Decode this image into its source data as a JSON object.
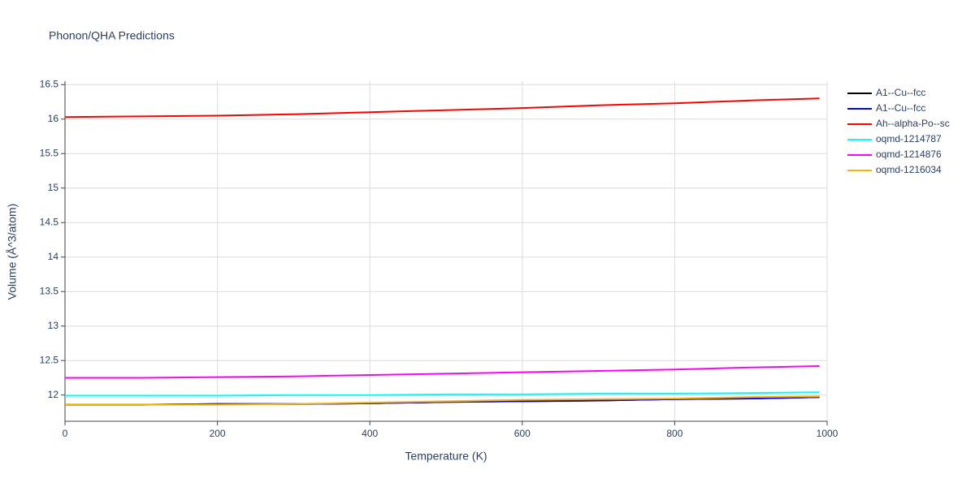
{
  "chart_data": {
    "type": "line",
    "title": "Phonon/QHA Predictions",
    "x_label": "Temperature (K)",
    "y_label": "Volume (Å^3/atom)",
    "x": [
      0,
      100,
      200,
      300,
      400,
      500,
      600,
      700,
      800,
      900,
      990
    ],
    "series": [
      {
        "name": "A1--Cu--fcc",
        "color": "#000000",
        "values": [
          11.86,
          11.86,
          11.87,
          11.87,
          11.88,
          11.9,
          11.91,
          11.92,
          11.94,
          11.95,
          11.97
        ]
      },
      {
        "name": "A1--Cu--fcc",
        "color": "#0000ff",
        "values": [
          11.86,
          11.86,
          11.87,
          11.87,
          11.88,
          11.9,
          11.91,
          11.92,
          11.94,
          11.95,
          11.97
        ]
      },
      {
        "name": "Ah--alpha-Po--sc",
        "color": "#ff0000",
        "values": [
          16.03,
          16.04,
          16.05,
          16.07,
          16.1,
          16.13,
          16.16,
          16.2,
          16.23,
          16.27,
          16.3
        ]
      },
      {
        "name": "oqmd-1214787",
        "color": "#00ffff",
        "values": [
          11.99,
          11.99,
          11.99,
          12.0,
          12.0,
          12.01,
          12.01,
          12.02,
          12.02,
          12.03,
          12.04
        ]
      },
      {
        "name": "oqmd-1214876",
        "color": "#ff00ff",
        "values": [
          12.25,
          12.25,
          12.26,
          12.27,
          12.29,
          12.31,
          12.33,
          12.35,
          12.37,
          12.4,
          12.42
        ]
      },
      {
        "name": "oqmd-1216034",
        "color": "#f5b400",
        "values": [
          11.86,
          11.86,
          11.86,
          11.87,
          11.89,
          11.91,
          11.93,
          11.94,
          11.95,
          11.97,
          11.98
        ]
      }
    ],
    "xlim": [
      0,
      1000
    ],
    "xticks": [
      0,
      200,
      400,
      600,
      800,
      1000
    ],
    "ylim": [
      11.62,
      16.55
    ],
    "yticks": [
      12,
      12.5,
      13,
      13.5,
      14,
      14.5,
      15,
      15.5,
      16,
      16.5
    ],
    "grid": true,
    "legend": "right"
  }
}
